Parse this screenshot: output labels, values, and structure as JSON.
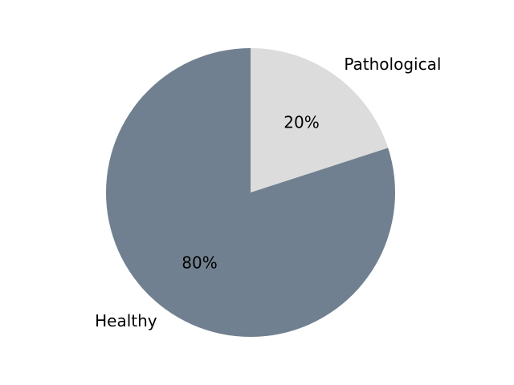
{
  "chart_data": {
    "type": "pie",
    "slices": [
      {
        "label": "Pathological",
        "value": 20,
        "pct_label": "20%",
        "color": "#dcdcdc"
      },
      {
        "label": "Healthy",
        "value": 80,
        "pct_label": "80%",
        "color": "#708090"
      }
    ],
    "start_angle_deg": 90,
    "direction": "clockwise"
  }
}
